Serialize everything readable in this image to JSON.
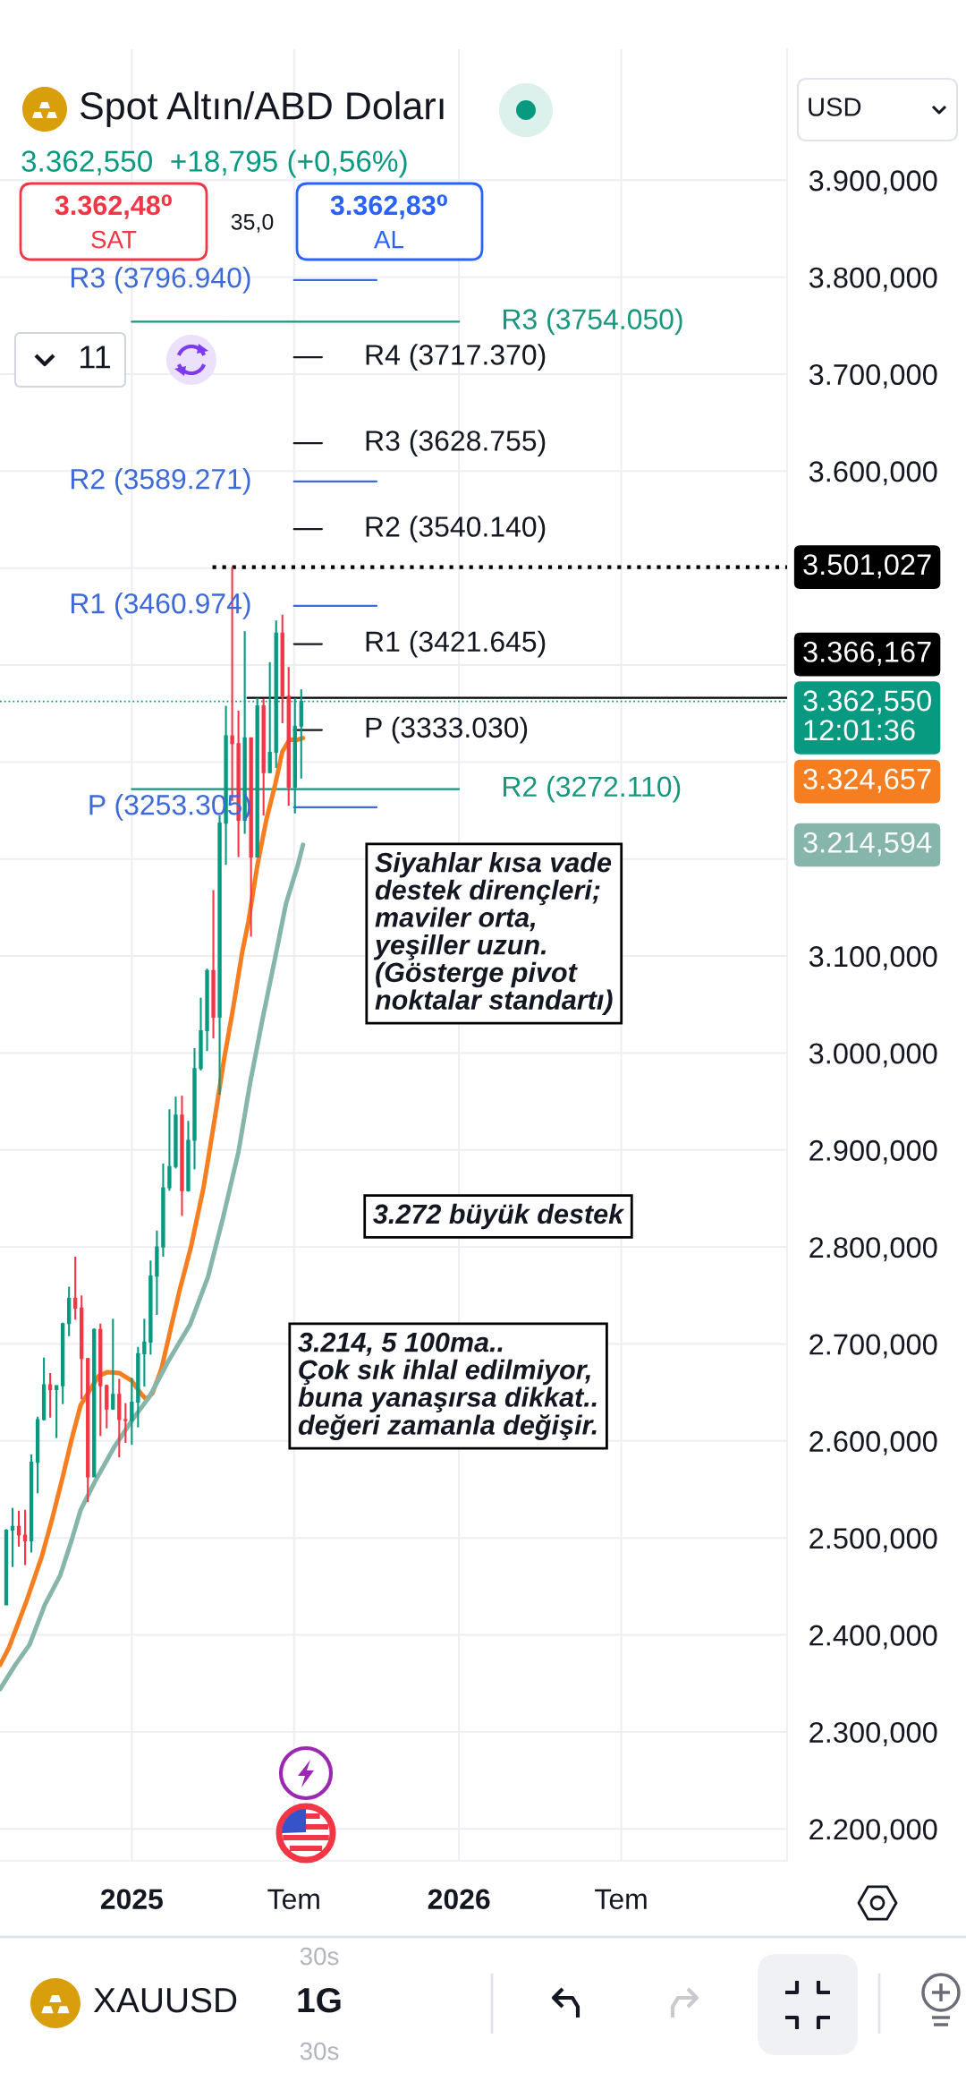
{
  "chart_data": {
    "type": "candlestick",
    "title": "Spot Altın/ABD Doları",
    "subtitle": "3.362,550  +18,795 (+0,56%)",
    "x": [
      "2024-08-14",
      "2024-08-21",
      "2024-08-28",
      "2024-09-04",
      "2024-09-11",
      "2024-09-18",
      "2024-09-25",
      "2024-10-02",
      "2024-10-09",
      "2024-10-16",
      "2024-10-23",
      "2024-10-30",
      "2024-11-06",
      "2024-11-13",
      "2024-11-20",
      "2024-11-27",
      "2024-12-04",
      "2024-12-11",
      "2024-12-18",
      "2024-12-25",
      "2025-01-01",
      "2025-01-08",
      "2025-01-15",
      "2025-01-22",
      "2025-01-29",
      "2025-02-05",
      "2025-02-12",
      "2025-02-19",
      "2025-02-26",
      "2025-03-05",
      "2025-03-12",
      "2025-03-19",
      "2025-03-26",
      "2025-04-02",
      "2025-04-09",
      "2025-04-16",
      "2025-04-23",
      "2025-04-30",
      "2025-05-07",
      "2025-05-14",
      "2025-05-21",
      "2025-05-28",
      "2025-06-04",
      "2025-06-11",
      "2025-06-18",
      "2025-06-25",
      "2025-07-02",
      "2025-07-09"
    ],
    "ohlc": [
      [
        2431,
        2509,
        2431,
        2508
      ],
      [
        2508,
        2531,
        2470,
        2512
      ],
      [
        2512,
        2528,
        2491,
        2503
      ],
      [
        2503,
        2529,
        2472,
        2497
      ],
      [
        2497,
        2586,
        2485,
        2578
      ],
      [
        2578,
        2625,
        2546,
        2622
      ],
      [
        2622,
        2686,
        2621,
        2658
      ],
      [
        2658,
        2670,
        2624,
        2653
      ],
      [
        2653,
        2657,
        2603,
        2657
      ],
      [
        2657,
        2722,
        2638,
        2721
      ],
      [
        2721,
        2759,
        2708,
        2747
      ],
      [
        2747,
        2790,
        2725,
        2737
      ],
      [
        2737,
        2750,
        2643,
        2685
      ],
      [
        2685,
        2685,
        2537,
        2563
      ],
      [
        2563,
        2716,
        2563,
        2715
      ],
      [
        2715,
        2721,
        2605,
        2657
      ],
      [
        2657,
        2658,
        2613,
        2633
      ],
      [
        2633,
        2726,
        2632,
        2648
      ],
      [
        2648,
        2664,
        2583,
        2622
      ],
      [
        2622,
        2639,
        2598,
        2621
      ],
      [
        2621,
        2665,
        2596,
        2640
      ],
      [
        2640,
        2697,
        2614,
        2690
      ],
      [
        2690,
        2726,
        2656,
        2702
      ],
      [
        2702,
        2786,
        2689,
        2770
      ],
      [
        2770,
        2817,
        2730,
        2800
      ],
      [
        2800,
        2886,
        2790,
        2861
      ],
      [
        2861,
        2942,
        2858,
        2883
      ],
      [
        2883,
        2955,
        2881,
        2936
      ],
      [
        2936,
        2956,
        2832,
        2858
      ],
      [
        2858,
        2930,
        2857,
        2910
      ],
      [
        2910,
        3005,
        2880,
        2984
      ],
      [
        2984,
        3057,
        2982,
        3023
      ],
      [
        3023,
        3087,
        3002,
        3085
      ],
      [
        3085,
        3168,
        3015,
        3037
      ],
      [
        3037,
        3245,
        2957,
        3237
      ],
      [
        3237,
        3358,
        3194,
        3327
      ],
      [
        3327,
        3501.027,
        3260,
        3319
      ],
      [
        3319,
        3353,
        3202,
        3240
      ],
      [
        3240,
        3435,
        3226,
        3325
      ],
      [
        3325,
        3325,
        3120,
        3202
      ],
      [
        3202,
        3366,
        3202,
        3358
      ],
      [
        3358,
        3365,
        3245,
        3289
      ],
      [
        3289,
        3403,
        3289,
        3310
      ],
      [
        3310,
        3446,
        3294,
        3433
      ],
      [
        3433,
        3452,
        3340,
        3368
      ],
      [
        3368,
        3398,
        3255,
        3274
      ],
      [
        3274,
        3366,
        3247,
        3337
      ],
      [
        3337,
        3375,
        3283,
        3362.55
      ]
    ],
    "colors": [
      "#089981",
      "#089981",
      "#f23645",
      "#f23645",
      "#089981",
      "#089981",
      "#089981",
      "#f23645",
      "#089981",
      "#089981",
      "#089981",
      "#f23645",
      "#f23645",
      "#f23645",
      "#089981",
      "#f23645",
      "#f23645",
      "#089981",
      "#f23645",
      "#f23645",
      "#089981",
      "#089981",
      "#089981",
      "#089981",
      "#089981",
      "#089981",
      "#089981",
      "#089981",
      "#f23645",
      "#089981",
      "#089981",
      "#089981",
      "#089981",
      "#f23645",
      "#089981",
      "#089981",
      "#f23645",
      "#f23645",
      "#089981",
      "#f23645",
      "#089981",
      "#f23645",
      "#089981",
      "#089981",
      "#f23645",
      "#f23645",
      "#089981",
      "#089981"
    ],
    "series": [
      {
        "type": "line",
        "color": "#f57f20",
        "x": [
          "2024-08-07",
          "2024-08-17",
          "2024-09-06",
          "2024-09-23",
          "2024-10-04",
          "2024-10-16",
          "2024-10-26",
          "2024-11-05",
          "2024-11-15",
          "2024-11-25",
          "2024-12-05",
          "2024-12-18",
          "2025-01-01",
          "2025-01-11",
          "2025-01-17",
          "2025-01-24",
          "2025-02-03",
          "2025-02-23",
          "2025-03-08",
          "2025-03-22",
          "2025-04-04",
          "2025-04-14",
          "2025-04-24",
          "2025-05-04",
          "2025-05-11",
          "2025-05-21",
          "2025-05-31",
          "2025-06-10",
          "2025-06-18",
          "2025-06-26",
          "2025-07-05",
          "2025-07-11"
        ],
        "values": [
          2369,
          2387,
          2436,
          2482,
          2519,
          2563,
          2602,
          2637,
          2652,
          2667,
          2671,
          2670,
          2662,
          2649,
          2643,
          2649,
          2674,
          2754,
          2800,
          2861,
          2935,
          2994,
          3046,
          3103,
          3135,
          3193,
          3240,
          3277,
          3311,
          3323,
          3323,
          3324.657
        ]
      },
      {
        "type": "line",
        "color": "#86b5ab",
        "x": [
          "2024-08-07",
          "2024-08-24",
          "2024-09-09",
          "2024-09-26",
          "2024-10-13",
          "2024-10-26",
          "2024-11-05",
          "2024-11-22",
          "2024-12-12",
          "2025-01-01",
          "2025-01-21",
          "2025-02-10",
          "2025-03-07",
          "2025-03-27",
          "2025-04-13",
          "2025-04-30",
          "2025-05-13",
          "2025-05-26",
          "2025-06-09",
          "2025-06-22",
          "2025-07-05",
          "2025-07-11"
        ],
        "values": [
          2344,
          2369,
          2390,
          2431,
          2461,
          2498,
          2529,
          2560,
          2593,
          2621,
          2646,
          2681,
          2720,
          2769,
          2831,
          2898,
          2969,
          3031,
          3094,
          3154,
          3193,
          3214.594
        ]
      },
      {
        "type": "line",
        "color": "#000000",
        "line_style": "dotted",
        "x": [
          "2025-04-01",
          "2027-01-02"
        ],
        "values": [
          3501.027,
          3501.027
        ],
        "value_labels": [
          null,
          "3.501,027"
        ]
      },
      {
        "type": "line",
        "color": "#000000",
        "x": [
          "2025-05-10",
          "2027-01-02"
        ],
        "values": [
          3366.167,
          3366.167
        ],
        "value_labels": [
          null,
          "3.366,167"
        ]
      },
      {
        "type": "line",
        "color": "#131722",
        "x": [
          "2025-07-01",
          "2025-08-01"
        ],
        "values": [
          3717.37,
          3717.37
        ],
        "value_labels": [
          null,
          "R4 (3717.370)"
        ]
      },
      {
        "type": "line",
        "color": "#131722",
        "x": [
          "2025-07-01",
          "2025-08-01"
        ],
        "values": [
          3628.755,
          3628.755
        ],
        "value_labels": [
          null,
          "R3 (3628.755)"
        ]
      },
      {
        "type": "line",
        "color": "#131722",
        "x": [
          "2025-07-01",
          "2025-08-01"
        ],
        "values": [
          3540.14,
          3540.14
        ],
        "value_labels": [
          null,
          "R2 (3540.140)"
        ]
      },
      {
        "type": "line",
        "color": "#131722",
        "x": [
          "2025-07-01",
          "2025-08-01"
        ],
        "values": [
          3421.645,
          3421.645
        ],
        "value_labels": [
          null,
          "R1 (3421.645)"
        ]
      },
      {
        "type": "line",
        "color": "#131722",
        "x": [
          "2025-07-01",
          "2025-08-01"
        ],
        "values": [
          3333.03,
          3333.03
        ],
        "value_labels": [
          null,
          "P (3333.030)"
        ]
      },
      {
        "type": "line",
        "color": "#3d6ad6",
        "x": [
          "2025-07-01",
          "2025-10-01"
        ],
        "values": [
          3796.94,
          3796.94
        ],
        "value_labels": [
          "R3 (3796.940)",
          null
        ]
      },
      {
        "type": "line",
        "color": "#3d6ad6",
        "x": [
          "2025-07-01",
          "2025-10-01"
        ],
        "values": [
          3589.271,
          3589.271
        ],
        "value_labels": [
          "R2 (3589.271)",
          null
        ]
      },
      {
        "type": "line",
        "color": "#3d6ad6",
        "x": [
          "2025-07-01",
          "2025-10-01"
        ],
        "values": [
          3460.974,
          3460.974
        ],
        "value_labels": [
          "R1 (3460.974)",
          null
        ]
      },
      {
        "type": "line",
        "color": "#3d6ad6",
        "x": [
          "2025-07-01",
          "2025-10-01"
        ],
        "values": [
          3253.305,
          3253.305
        ]
      },
      {
        "type": "line",
        "color": "#17977e",
        "x": [
          "2025-01-01",
          "2026-01-01"
        ],
        "values": [
          3754.05,
          3754.05
        ],
        "value_labels": [
          null,
          "R3 (3754.050)"
        ]
      },
      {
        "type": "line",
        "color": "#17977e",
        "x": [
          "2025-01-01",
          "2026-01-01"
        ],
        "values": [
          3272.11,
          3272.11
        ],
        "value_labels": [
          null,
          "R2 (3272.110)"
        ]
      }
    ],
    "ref_lines": [
      {
        "axis": "y",
        "value": 3362.55,
        "label": "3.362,550\n12:01:36",
        "color": "#089981",
        "line_style": "dotted"
      }
    ],
    "annotations": [
      "USD",
      "3.362,48⁰",
      "SAT",
      "35,0",
      "3.362,83⁰",
      "AL",
      "11",
      "Siyahlar kısa vade\ndestek dirençleri;\nmaviler orta,\nyeşiller uzun.\n(Gösterge pivot\nnoktalar standartı)",
      "3.272 büyük destek",
      "3.214, 5 100ma..\nÇok sık ihlal edilmiyor,\nbuna yanaşırsa dikkat..\ndeğeri zamanla değişir.",
      "30s",
      "XAUUSD",
      "1G",
      "30s",
      "P (3253.305)",
      "3.324,657",
      "3.214,594"
    ],
    "xlim": [
      "2024-08-07",
      "2027-01-02"
    ],
    "xticks": [
      {
        "value": "2025-01-01",
        "label": "2025"
      },
      {
        "value": "2025-07-01",
        "label": "Tem"
      },
      {
        "value": "2026-01-01",
        "label": "2026"
      },
      {
        "value": "2026-07-01",
        "label": "Tem"
      }
    ],
    "ylim": [
      2167,
      4035
    ],
    "yticks": [
      {
        "value": 2200,
        "label": "2.200,000"
      },
      {
        "value": 2300,
        "label": "2.300,000"
      },
      {
        "value": 2400,
        "label": "2.400,000"
      },
      {
        "value": 2500,
        "label": "2.500,000"
      },
      {
        "value": 2600,
        "label": "2.600,000"
      },
      {
        "value": 2700,
        "label": "2.700,000"
      },
      {
        "value": 2800,
        "label": "2.800,000"
      },
      {
        "value": 2900,
        "label": "2.900,000"
      },
      {
        "value": 3000,
        "label": "3.000,000"
      },
      {
        "value": 3100,
        "label": "3.100,000"
      },
      {
        "value": 3200,
        "label": null
      },
      {
        "value": 3300,
        "label": null
      },
      {
        "value": 3400,
        "label": null
      },
      {
        "value": 3500,
        "label": null
      },
      {
        "value": 3600,
        "label": "3.600,000"
      },
      {
        "value": 3700,
        "label": "3.700,000"
      },
      {
        "value": 3800,
        "label": "3.800,000"
      },
      {
        "value": 3900,
        "label": "3.900,000"
      }
    ],
    "grid": true
  }
}
